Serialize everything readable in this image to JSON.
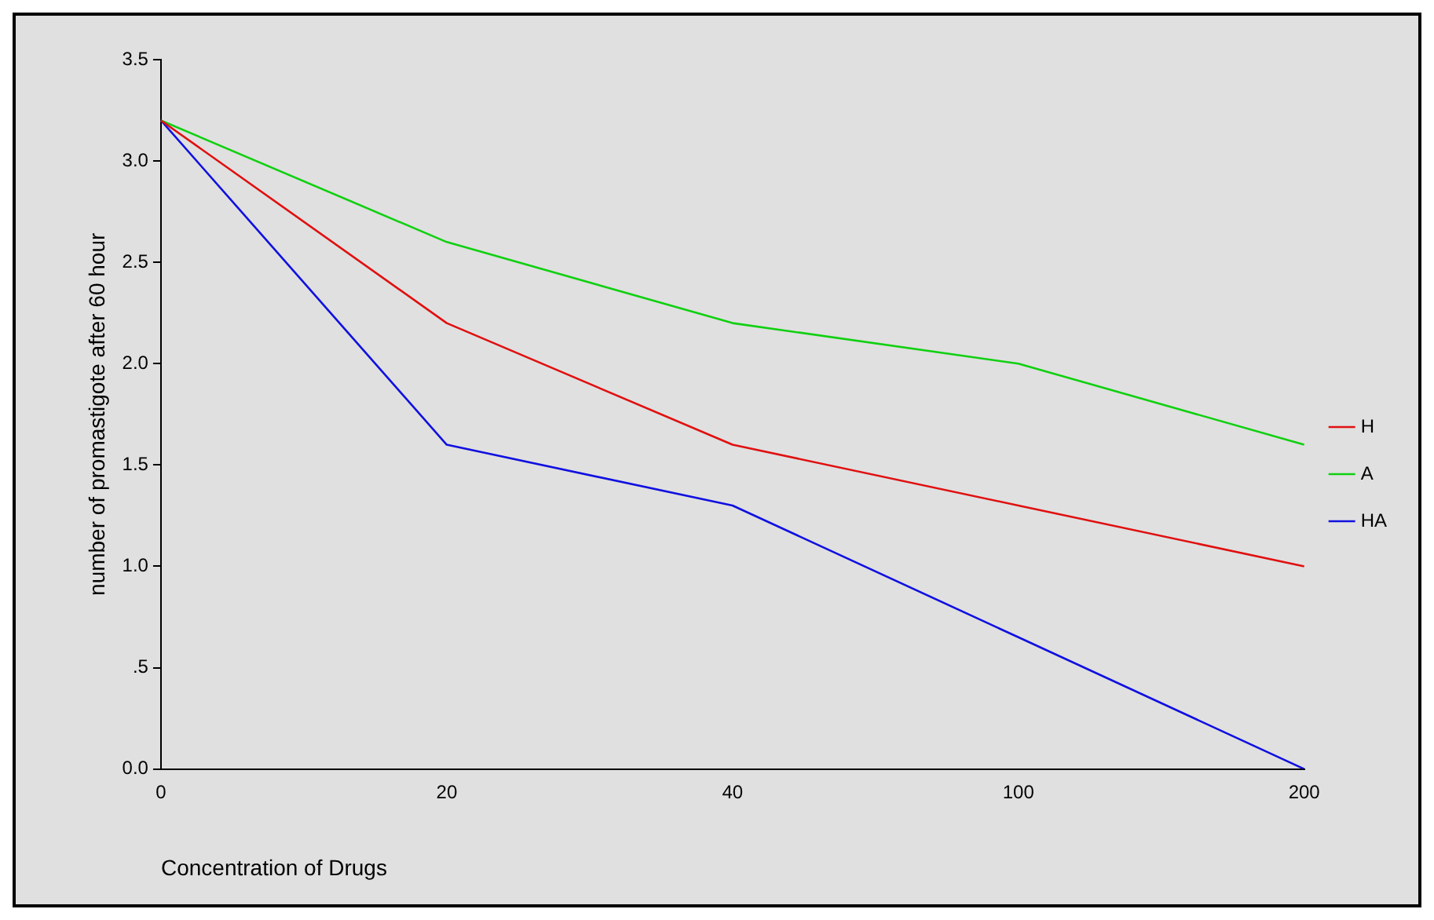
{
  "chart_data": {
    "type": "line",
    "xlabel": "Concentration of Drugs",
    "ylabel": "number of promastigote after 60 hour",
    "categories": [
      "0",
      "20",
      "40",
      "100",
      "200"
    ],
    "series": [
      {
        "name": "H",
        "color": "#e01010",
        "values": [
          3.2,
          2.2,
          1.6,
          1.3,
          1.0
        ]
      },
      {
        "name": "A",
        "color": "#10d010",
        "values": [
          3.2,
          2.6,
          2.2,
          2.0,
          1.6
        ]
      },
      {
        "name": "HA",
        "color": "#1010e0",
        "values": [
          3.2,
          1.6,
          1.3,
          0.65,
          0.0
        ]
      }
    ],
    "ylim": [
      0,
      3.5
    ],
    "yticks": [
      {
        "value": 0,
        "label": "0.0"
      },
      {
        "value": 0.5,
        "label": ".5"
      },
      {
        "value": 1,
        "label": "1.0"
      },
      {
        "value": 1.5,
        "label": "1.5"
      },
      {
        "value": 2,
        "label": "2.0"
      },
      {
        "value": 2.5,
        "label": "2.5"
      },
      {
        "value": 3,
        "label": "3.0"
      },
      {
        "value": 3.5,
        "label": "3.5"
      }
    ],
    "grid": false,
    "legend": "right",
    "marker": "none",
    "line_style": "solid"
  }
}
